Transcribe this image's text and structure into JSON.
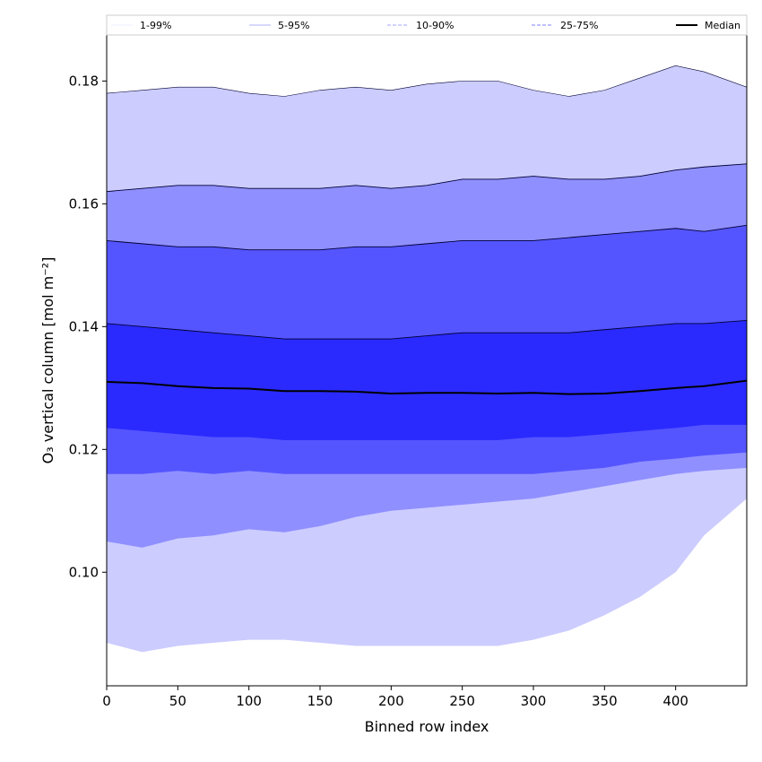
{
  "chart_data": {
    "type": "area",
    "xlabel": "Binned row index",
    "ylabel": "O₃ vertical column [mol m⁻²]",
    "xlim": [
      0,
      450
    ],
    "ylim": [
      0.0815,
      0.1875
    ],
    "x_ticks": [
      0,
      50,
      100,
      150,
      200,
      250,
      300,
      350,
      400
    ],
    "y_ticks": [
      0.1,
      0.12,
      0.14,
      0.16,
      0.18
    ],
    "x_tick_labels": [
      "0",
      "50",
      "100",
      "150",
      "200",
      "250",
      "300",
      "350",
      "400"
    ],
    "y_tick_labels": [
      "0.10",
      "0.12",
      "0.14",
      "0.16",
      "0.18"
    ],
    "grid": false,
    "legend_position": "top",
    "x": [
      0,
      25,
      50,
      75,
      100,
      125,
      150,
      175,
      200,
      225,
      250,
      275,
      300,
      325,
      350,
      375,
      400,
      420,
      450
    ],
    "bands": [
      {
        "name": "1-99%",
        "color": "#ccccff",
        "line_style": "solid",
        "lower": [
          0.0885,
          0.087,
          0.088,
          0.0885,
          0.089,
          0.089,
          0.0885,
          0.088,
          0.088,
          0.088,
          0.088,
          0.088,
          0.089,
          0.0905,
          0.093,
          0.096,
          0.1,
          0.106,
          0.112
        ],
        "upper": [
          0.178,
          0.1785,
          0.179,
          0.179,
          0.178,
          0.1775,
          0.1785,
          0.179,
          0.1785,
          0.1795,
          0.18,
          0.18,
          0.1785,
          0.1775,
          0.1785,
          0.1805,
          0.1825,
          0.1815,
          0.179
        ]
      },
      {
        "name": "5-95%",
        "color": "#8f8fff",
        "line_style": "solid",
        "lower": [
          0.105,
          0.104,
          0.1055,
          0.106,
          0.107,
          0.1065,
          0.1075,
          0.109,
          0.11,
          0.1105,
          0.111,
          0.1115,
          0.112,
          0.113,
          0.114,
          0.115,
          0.116,
          0.1165,
          0.117
        ],
        "upper": [
          0.162,
          0.1625,
          0.163,
          0.163,
          0.1625,
          0.1625,
          0.1625,
          0.163,
          0.1625,
          0.163,
          0.164,
          0.164,
          0.1645,
          0.164,
          0.164,
          0.1645,
          0.1655,
          0.166,
          0.1665
        ]
      },
      {
        "name": "10-90%",
        "color": "#5555ff",
        "line_style": "dashed",
        "lower": [
          0.116,
          0.116,
          0.1165,
          0.116,
          0.1165,
          0.116,
          0.116,
          0.116,
          0.116,
          0.116,
          0.116,
          0.116,
          0.116,
          0.1165,
          0.117,
          0.118,
          0.1185,
          0.119,
          0.1195
        ],
        "upper": [
          0.154,
          0.1535,
          0.153,
          0.153,
          0.1525,
          0.1525,
          0.1525,
          0.153,
          0.153,
          0.1535,
          0.154,
          0.154,
          0.154,
          0.1545,
          0.155,
          0.1555,
          0.156,
          0.1555,
          0.1565
        ]
      },
      {
        "name": "25-75%",
        "color": "#2a2aff",
        "line_style": "dashed",
        "lower": [
          0.1235,
          0.123,
          0.1225,
          0.122,
          0.122,
          0.1215,
          0.1215,
          0.1215,
          0.1215,
          0.1215,
          0.1215,
          0.1215,
          0.122,
          0.122,
          0.1225,
          0.123,
          0.1235,
          0.124,
          0.124
        ],
        "upper": [
          0.1405,
          0.14,
          0.1395,
          0.139,
          0.1385,
          0.138,
          0.138,
          0.138,
          0.138,
          0.1385,
          0.139,
          0.139,
          0.139,
          0.139,
          0.1395,
          0.14,
          0.1405,
          0.1405,
          0.141
        ]
      }
    ],
    "series": [
      {
        "name": "Median",
        "color": "#000000",
        "values": [
          0.131,
          0.1308,
          0.1303,
          0.13,
          0.1299,
          0.1295,
          0.1295,
          0.1294,
          0.1291,
          0.1292,
          0.1292,
          0.1291,
          0.1292,
          0.129,
          0.1291,
          0.1295,
          0.13,
          0.1303,
          0.1312
        ]
      }
    ]
  }
}
